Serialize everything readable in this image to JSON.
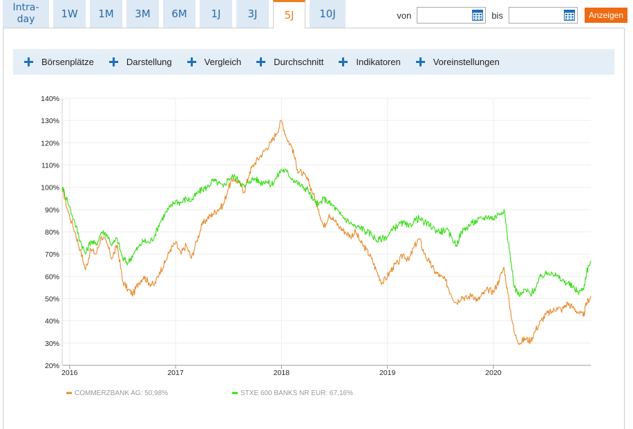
{
  "tabs": [
    {
      "label": "Intra-\nday",
      "active": false
    },
    {
      "label": "1W",
      "active": false
    },
    {
      "label": "1M",
      "active": false
    },
    {
      "label": "3M",
      "active": false
    },
    {
      "label": "6M",
      "active": false
    },
    {
      "label": "1J",
      "active": false
    },
    {
      "label": "3J",
      "active": false
    },
    {
      "label": "5J",
      "active": true
    },
    {
      "label": "10J",
      "active": false
    }
  ],
  "daterange": {
    "from_label": "von",
    "from_value": "",
    "to_label": "bis",
    "to_value": "",
    "button": "Anzeigen",
    "icon": "calendar-icon"
  },
  "options": [
    {
      "label": "Börsenplätze",
      "icon": "plus-icon"
    },
    {
      "label": "Darstellung",
      "icon": "plus-icon"
    },
    {
      "label": "Vergleich",
      "icon": "plus-icon"
    },
    {
      "label": "Durchschnitt",
      "icon": "plus-icon"
    },
    {
      "label": "Indikatoren",
      "icon": "plus-icon"
    },
    {
      "label": "Voreinstellungen",
      "icon": "plus-icon"
    }
  ],
  "colors": {
    "accent": "#ee7d1f",
    "tab_bg": "#dde9f4",
    "tab_text": "#2a6aa8",
    "series_1": "#e8892c",
    "series_2": "#33dd11"
  },
  "chart_data": {
    "type": "line",
    "y_ticks": [
      "140%",
      "130%",
      "120%",
      "110%",
      "100%",
      "90%",
      "80%",
      "70%",
      "60%",
      "50%",
      "40%",
      "30%",
      "20%"
    ],
    "ylim": [
      20,
      140
    ],
    "x_ticks": [
      "2016",
      "2017",
      "2018",
      "2019",
      "2020"
    ],
    "x_tick_values": [
      2016.0,
      2017.0,
      2018.0,
      2019.0,
      2020.0
    ],
    "xlim": [
      2015.93,
      2020.92
    ],
    "grid": true,
    "legend_position": "bottom",
    "series": [
      {
        "name": "COMMERZBANK AG: 50,98%",
        "color": "#e8892c",
        "points": [
          [
            2015.93,
            100
          ],
          [
            2015.98,
            90
          ],
          [
            2016.05,
            80
          ],
          [
            2016.1,
            72
          ],
          [
            2016.15,
            63
          ],
          [
            2016.2,
            72
          ],
          [
            2016.25,
            70
          ],
          [
            2016.3,
            78
          ],
          [
            2016.35,
            75
          ],
          [
            2016.4,
            68
          ],
          [
            2016.45,
            74
          ],
          [
            2016.5,
            58
          ],
          [
            2016.55,
            54
          ],
          [
            2016.6,
            52
          ],
          [
            2016.65,
            57
          ],
          [
            2016.7,
            60
          ],
          [
            2016.75,
            57
          ],
          [
            2016.8,
            56
          ],
          [
            2016.85,
            62
          ],
          [
            2016.9,
            66
          ],
          [
            2016.95,
            72
          ],
          [
            2017.0,
            75
          ],
          [
            2017.05,
            70
          ],
          [
            2017.1,
            74
          ],
          [
            2017.15,
            68
          ],
          [
            2017.2,
            76
          ],
          [
            2017.25,
            83
          ],
          [
            2017.3,
            86
          ],
          [
            2017.35,
            88
          ],
          [
            2017.4,
            90
          ],
          [
            2017.45,
            92
          ],
          [
            2017.5,
            100
          ],
          [
            2017.55,
            104
          ],
          [
            2017.6,
            102
          ],
          [
            2017.65,
            98
          ],
          [
            2017.7,
            107
          ],
          [
            2017.75,
            111
          ],
          [
            2017.8,
            114
          ],
          [
            2017.85,
            117
          ],
          [
            2017.9,
            120
          ],
          [
            2017.95,
            124
          ],
          [
            2018.0,
            130
          ],
          [
            2018.05,
            122
          ],
          [
            2018.1,
            118
          ],
          [
            2018.15,
            108
          ],
          [
            2018.2,
            106
          ],
          [
            2018.25,
            103
          ],
          [
            2018.3,
            97
          ],
          [
            2018.35,
            90
          ],
          [
            2018.4,
            82
          ],
          [
            2018.45,
            88
          ],
          [
            2018.5,
            85
          ],
          [
            2018.55,
            82
          ],
          [
            2018.6,
            80
          ],
          [
            2018.65,
            78
          ],
          [
            2018.7,
            80
          ],
          [
            2018.75,
            75
          ],
          [
            2018.8,
            72
          ],
          [
            2018.85,
            68
          ],
          [
            2018.9,
            62
          ],
          [
            2018.95,
            57
          ],
          [
            2019.0,
            60
          ],
          [
            2019.05,
            64
          ],
          [
            2019.1,
            66
          ],
          [
            2019.15,
            70
          ],
          [
            2019.2,
            67
          ],
          [
            2019.25,
            73
          ],
          [
            2019.3,
            77
          ],
          [
            2019.35,
            70
          ],
          [
            2019.4,
            66
          ],
          [
            2019.45,
            62
          ],
          [
            2019.5,
            60
          ],
          [
            2019.55,
            58
          ],
          [
            2019.6,
            52
          ],
          [
            2019.65,
            48
          ],
          [
            2019.7,
            51
          ],
          [
            2019.75,
            50
          ],
          [
            2019.8,
            52
          ],
          [
            2019.85,
            49
          ],
          [
            2019.9,
            52
          ],
          [
            2019.95,
            54
          ],
          [
            2020.0,
            53
          ],
          [
            2020.05,
            58
          ],
          [
            2020.1,
            64
          ],
          [
            2020.15,
            48
          ],
          [
            2020.2,
            34
          ],
          [
            2020.25,
            30
          ],
          [
            2020.3,
            32
          ],
          [
            2020.35,
            31
          ],
          [
            2020.4,
            36
          ],
          [
            2020.45,
            40
          ],
          [
            2020.5,
            43
          ],
          [
            2020.55,
            44
          ],
          [
            2020.6,
            46
          ],
          [
            2020.65,
            45
          ],
          [
            2020.7,
            48
          ],
          [
            2020.75,
            46
          ],
          [
            2020.8,
            44
          ],
          [
            2020.85,
            42
          ],
          [
            2020.88,
            48
          ],
          [
            2020.92,
            51
          ]
        ]
      },
      {
        "name": "STXE 600 BANKS NR EUR: 67,16%",
        "color": "#33dd11",
        "points": [
          [
            2015.93,
            100
          ],
          [
            2015.98,
            94
          ],
          [
            2016.05,
            84
          ],
          [
            2016.1,
            76
          ],
          [
            2016.15,
            70
          ],
          [
            2016.2,
            76
          ],
          [
            2016.25,
            74
          ],
          [
            2016.3,
            80
          ],
          [
            2016.35,
            79
          ],
          [
            2016.4,
            74
          ],
          [
            2016.45,
            77
          ],
          [
            2016.5,
            68
          ],
          [
            2016.55,
            66
          ],
          [
            2016.6,
            70
          ],
          [
            2016.65,
            73
          ],
          [
            2016.7,
            76
          ],
          [
            2016.75,
            75
          ],
          [
            2016.8,
            78
          ],
          [
            2016.85,
            84
          ],
          [
            2016.9,
            88
          ],
          [
            2016.95,
            91
          ],
          [
            2017.0,
            94
          ],
          [
            2017.05,
            93
          ],
          [
            2017.1,
            95
          ],
          [
            2017.15,
            94
          ],
          [
            2017.2,
            97
          ],
          [
            2017.25,
            99
          ],
          [
            2017.3,
            100
          ],
          [
            2017.35,
            103
          ],
          [
            2017.4,
            102
          ],
          [
            2017.45,
            100
          ],
          [
            2017.5,
            104
          ],
          [
            2017.55,
            105
          ],
          [
            2017.6,
            103
          ],
          [
            2017.65,
            100
          ],
          [
            2017.7,
            103
          ],
          [
            2017.75,
            104
          ],
          [
            2017.8,
            102
          ],
          [
            2017.85,
            103
          ],
          [
            2017.9,
            101
          ],
          [
            2017.95,
            104
          ],
          [
            2018.0,
            108
          ],
          [
            2018.05,
            107
          ],
          [
            2018.1,
            104
          ],
          [
            2018.15,
            102
          ],
          [
            2018.2,
            100
          ],
          [
            2018.25,
            99
          ],
          [
            2018.3,
            94
          ],
          [
            2018.35,
            92
          ],
          [
            2018.4,
            95
          ],
          [
            2018.45,
            93
          ],
          [
            2018.5,
            91
          ],
          [
            2018.55,
            88
          ],
          [
            2018.6,
            86
          ],
          [
            2018.65,
            84
          ],
          [
            2018.7,
            82
          ],
          [
            2018.75,
            82
          ],
          [
            2018.8,
            80
          ],
          [
            2018.85,
            79
          ],
          [
            2018.9,
            76
          ],
          [
            2018.95,
            77
          ],
          [
            2019.0,
            78
          ],
          [
            2019.05,
            81
          ],
          [
            2019.1,
            83
          ],
          [
            2019.15,
            84
          ],
          [
            2019.2,
            82
          ],
          [
            2019.25,
            85
          ],
          [
            2019.3,
            86
          ],
          [
            2019.35,
            84
          ],
          [
            2019.4,
            83
          ],
          [
            2019.45,
            81
          ],
          [
            2019.5,
            80
          ],
          [
            2019.55,
            81
          ],
          [
            2019.6,
            78
          ],
          [
            2019.65,
            74
          ],
          [
            2019.7,
            80
          ],
          [
            2019.75,
            82
          ],
          [
            2019.8,
            84
          ],
          [
            2019.85,
            85
          ],
          [
            2019.9,
            86
          ],
          [
            2019.95,
            87
          ],
          [
            2020.0,
            86
          ],
          [
            2020.05,
            88
          ],
          [
            2020.1,
            90
          ],
          [
            2020.15,
            72
          ],
          [
            2020.2,
            55
          ],
          [
            2020.25,
            51
          ],
          [
            2020.3,
            54
          ],
          [
            2020.35,
            52
          ],
          [
            2020.4,
            55
          ],
          [
            2020.45,
            60
          ],
          [
            2020.5,
            61
          ],
          [
            2020.55,
            62
          ],
          [
            2020.6,
            60
          ],
          [
            2020.65,
            58
          ],
          [
            2020.7,
            57
          ],
          [
            2020.75,
            55
          ],
          [
            2020.8,
            53
          ],
          [
            2020.85,
            54
          ],
          [
            2020.88,
            62
          ],
          [
            2020.92,
            67
          ]
        ]
      }
    ]
  }
}
